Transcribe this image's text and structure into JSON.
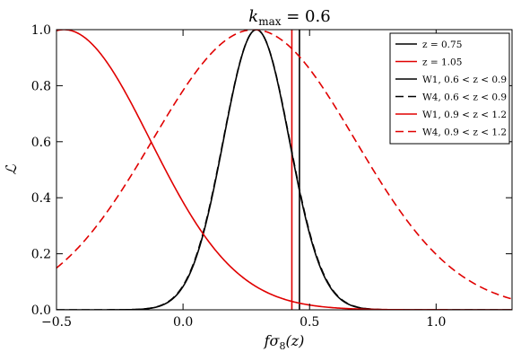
{
  "chart_data": {
    "type": "line",
    "title_main": "k",
    "title_sub": "max",
    "title_rest": " = 0.6",
    "xlabel_main": "fσ",
    "xlabel_sub": "8",
    "xlabel_rest": "(z)",
    "ylabel": "ℒ",
    "xlim": [
      -0.5,
      1.3
    ],
    "ylim": [
      0.0,
      1.0
    ],
    "xticks": [
      -0.5,
      0.0,
      0.5,
      1.0
    ],
    "xtick_labels": [
      "−0.5",
      "0.0",
      "0.5",
      "1.0"
    ],
    "yticks": [
      0.0,
      0.2,
      0.4,
      0.6,
      0.8,
      1.0
    ],
    "ytick_labels": [
      "0.0",
      "0.2",
      "0.4",
      "0.6",
      "0.8",
      "1.0"
    ],
    "grid": false,
    "legend_position": "top-right",
    "series": [
      {
        "name": "z = 0.75",
        "kind": "vline",
        "color": "#000000",
        "dash": "solid",
        "x": 0.46
      },
      {
        "name": "z = 1.05",
        "kind": "vline",
        "color": "#e00000",
        "dash": "solid",
        "x": 0.43
      },
      {
        "name": "W1, 0.6 < z < 0.9",
        "kind": "gaussian",
        "color": "#000000",
        "dash": "solid",
        "mu": 0.29,
        "sigma": 0.13
      },
      {
        "name": "W4, 0.6 < z < 0.9",
        "kind": "gaussian",
        "color": "#000000",
        "dash": "dashed",
        "mu": 0.29,
        "sigma": 0.131
      },
      {
        "name": "W1, 0.9 < z < 1.2",
        "kind": "gaussian",
        "color": "#e00000",
        "dash": "solid",
        "mu": -0.47,
        "sigma": 0.34
      },
      {
        "name": "W4, 0.9 < z < 1.2",
        "kind": "gaussian",
        "color": "#e00000",
        "dash": "dashed",
        "mu": 0.28,
        "sigma": 0.4
      }
    ]
  }
}
